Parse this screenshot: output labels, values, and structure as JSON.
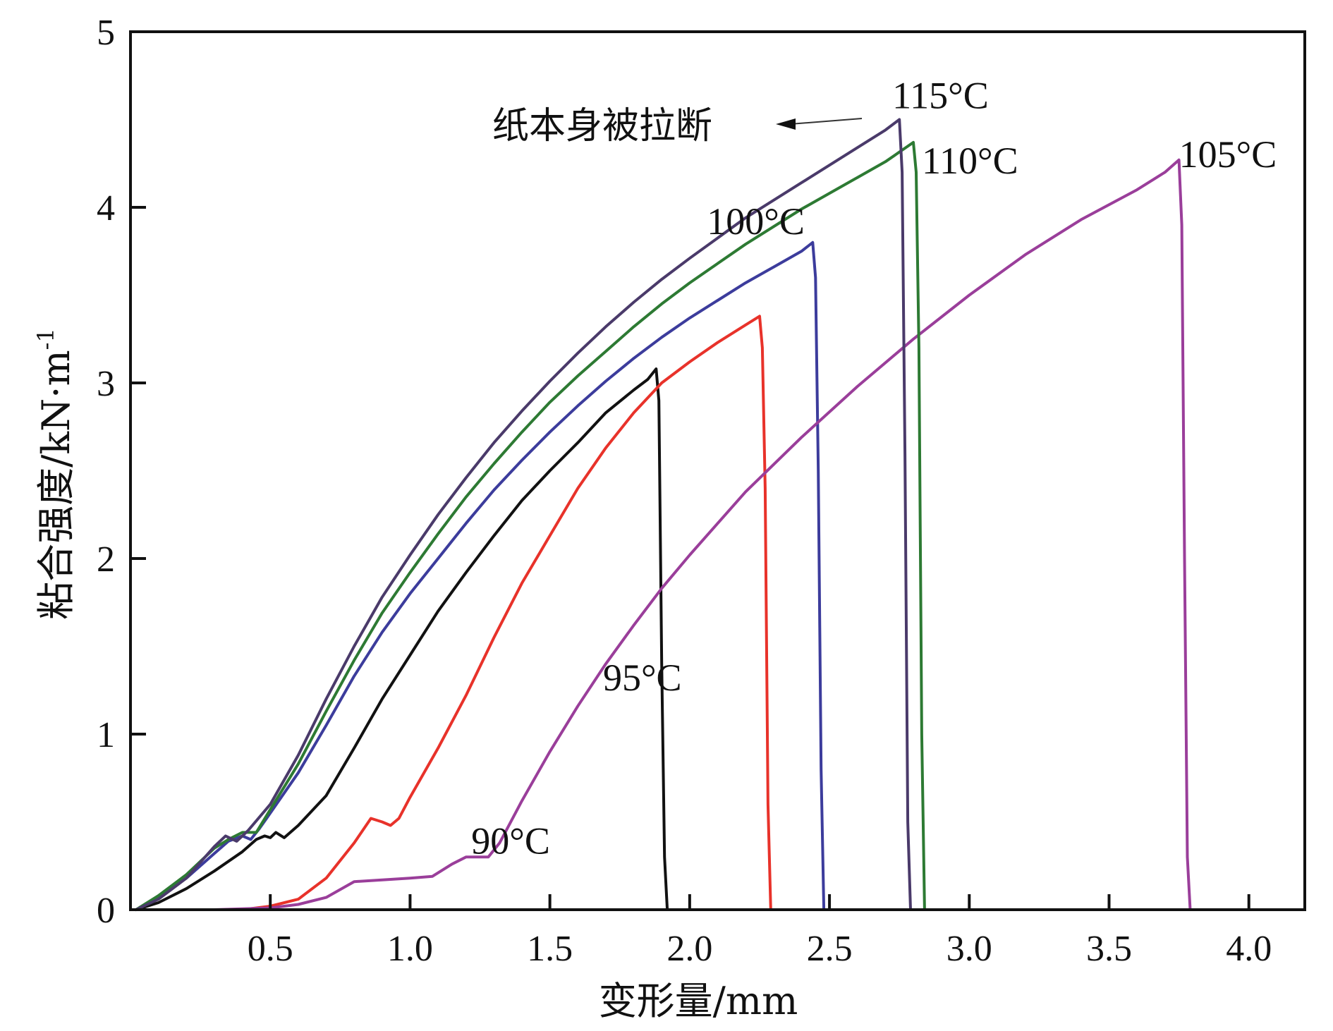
{
  "chart_data": {
    "type": "line",
    "xlabel": "变形量/mm",
    "ylabel": "粘合强度/kN·m",
    "ylabel_sup": "-1",
    "xlim": [
      0,
      4.2
    ],
    "ylim": [
      0,
      5
    ],
    "x_ticks": [
      "0.5",
      "1.0",
      "1.5",
      "2.0",
      "2.5",
      "3.0",
      "3.5",
      "4.0"
    ],
    "y_ticks": [
      "0",
      "1",
      "2",
      "3",
      "4",
      "5"
    ],
    "annotation": {
      "text": "纸本身被拉断",
      "target_series": "115°C"
    },
    "series": [
      {
        "name": "90°C",
        "color": "#111111",
        "points": [
          [
            0.02,
            0
          ],
          [
            0.1,
            0.04
          ],
          [
            0.2,
            0.12
          ],
          [
            0.3,
            0.22
          ],
          [
            0.4,
            0.33
          ],
          [
            0.45,
            0.4
          ],
          [
            0.48,
            0.42
          ],
          [
            0.5,
            0.41
          ],
          [
            0.52,
            0.44
          ],
          [
            0.55,
            0.41
          ],
          [
            0.6,
            0.48
          ],
          [
            0.7,
            0.65
          ],
          [
            0.8,
            0.92
          ],
          [
            0.9,
            1.2
          ],
          [
            1.0,
            1.45
          ],
          [
            1.1,
            1.7
          ],
          [
            1.2,
            1.92
          ],
          [
            1.3,
            2.13
          ],
          [
            1.4,
            2.33
          ],
          [
            1.5,
            2.5
          ],
          [
            1.6,
            2.66
          ],
          [
            1.7,
            2.83
          ],
          [
            1.8,
            2.96
          ],
          [
            1.85,
            3.02
          ],
          [
            1.88,
            3.08
          ],
          [
            1.89,
            2.9
          ],
          [
            1.9,
            1.4
          ],
          [
            1.91,
            0.3
          ],
          [
            1.92,
            0
          ]
        ]
      },
      {
        "name": "95°C",
        "color": "#e8322a",
        "points": [
          [
            0.4,
            0
          ],
          [
            0.5,
            0.02
          ],
          [
            0.6,
            0.06
          ],
          [
            0.7,
            0.18
          ],
          [
            0.8,
            0.38
          ],
          [
            0.86,
            0.52
          ],
          [
            0.9,
            0.5
          ],
          [
            0.93,
            0.48
          ],
          [
            0.96,
            0.52
          ],
          [
            1.0,
            0.64
          ],
          [
            1.1,
            0.92
          ],
          [
            1.2,
            1.22
          ],
          [
            1.3,
            1.55
          ],
          [
            1.4,
            1.86
          ],
          [
            1.5,
            2.13
          ],
          [
            1.6,
            2.4
          ],
          [
            1.7,
            2.63
          ],
          [
            1.8,
            2.83
          ],
          [
            1.9,
            3.0
          ],
          [
            2.0,
            3.12
          ],
          [
            2.1,
            3.23
          ],
          [
            2.2,
            3.33
          ],
          [
            2.25,
            3.38
          ],
          [
            2.26,
            3.2
          ],
          [
            2.27,
            2.4
          ],
          [
            2.28,
            0.6
          ],
          [
            2.29,
            0
          ]
        ]
      },
      {
        "name": "100°C",
        "color": "#3c3c9c",
        "points": [
          [
            0.02,
            0
          ],
          [
            0.1,
            0.07
          ],
          [
            0.2,
            0.18
          ],
          [
            0.3,
            0.32
          ],
          [
            0.35,
            0.39
          ],
          [
            0.4,
            0.42
          ],
          [
            0.43,
            0.4
          ],
          [
            0.46,
            0.46
          ],
          [
            0.5,
            0.55
          ],
          [
            0.6,
            0.78
          ],
          [
            0.7,
            1.05
          ],
          [
            0.8,
            1.33
          ],
          [
            0.9,
            1.58
          ],
          [
            1.0,
            1.8
          ],
          [
            1.1,
            2.0
          ],
          [
            1.2,
            2.2
          ],
          [
            1.3,
            2.39
          ],
          [
            1.4,
            2.56
          ],
          [
            1.5,
            2.72
          ],
          [
            1.6,
            2.87
          ],
          [
            1.7,
            3.01
          ],
          [
            1.8,
            3.14
          ],
          [
            1.9,
            3.26
          ],
          [
            2.0,
            3.37
          ],
          [
            2.1,
            3.47
          ],
          [
            2.2,
            3.57
          ],
          [
            2.3,
            3.66
          ],
          [
            2.4,
            3.75
          ],
          [
            2.44,
            3.8
          ],
          [
            2.45,
            3.6
          ],
          [
            2.46,
            2.5
          ],
          [
            2.47,
            0.8
          ],
          [
            2.48,
            0
          ]
        ]
      },
      {
        "name": "105°C",
        "color": "#9a3e9a",
        "points": [
          [
            0.3,
            0
          ],
          [
            0.5,
            0.01
          ],
          [
            0.6,
            0.03
          ],
          [
            0.7,
            0.07
          ],
          [
            0.8,
            0.16
          ],
          [
            0.9,
            0.17
          ],
          [
            1.0,
            0.18
          ],
          [
            1.08,
            0.19
          ],
          [
            1.15,
            0.26
          ],
          [
            1.2,
            0.3
          ],
          [
            1.28,
            0.3
          ],
          [
            1.32,
            0.38
          ],
          [
            1.4,
            0.62
          ],
          [
            1.5,
            0.9
          ],
          [
            1.6,
            1.16
          ],
          [
            1.7,
            1.4
          ],
          [
            1.8,
            1.62
          ],
          [
            1.9,
            1.83
          ],
          [
            2.0,
            2.02
          ],
          [
            2.2,
            2.38
          ],
          [
            2.4,
            2.69
          ],
          [
            2.6,
            2.98
          ],
          [
            2.8,
            3.25
          ],
          [
            3.0,
            3.5
          ],
          [
            3.2,
            3.73
          ],
          [
            3.4,
            3.93
          ],
          [
            3.6,
            4.1
          ],
          [
            3.7,
            4.2
          ],
          [
            3.75,
            4.27
          ],
          [
            3.76,
            3.9
          ],
          [
            3.77,
            2.0
          ],
          [
            3.78,
            0.3
          ],
          [
            3.79,
            0
          ]
        ]
      },
      {
        "name": "110°C",
        "color": "#2d7a33",
        "points": [
          [
            0.02,
            0
          ],
          [
            0.1,
            0.08
          ],
          [
            0.2,
            0.2
          ],
          [
            0.3,
            0.35
          ],
          [
            0.35,
            0.4
          ],
          [
            0.4,
            0.44
          ],
          [
            0.45,
            0.44
          ],
          [
            0.5,
            0.57
          ],
          [
            0.6,
            0.83
          ],
          [
            0.7,
            1.13
          ],
          [
            0.8,
            1.42
          ],
          [
            0.9,
            1.69
          ],
          [
            1.0,
            1.92
          ],
          [
            1.1,
            2.14
          ],
          [
            1.2,
            2.35
          ],
          [
            1.3,
            2.54
          ],
          [
            1.4,
            2.72
          ],
          [
            1.5,
            2.89
          ],
          [
            1.6,
            3.04
          ],
          [
            1.7,
            3.18
          ],
          [
            1.8,
            3.32
          ],
          [
            1.9,
            3.45
          ],
          [
            2.0,
            3.57
          ],
          [
            2.2,
            3.79
          ],
          [
            2.4,
            3.99
          ],
          [
            2.6,
            4.17
          ],
          [
            2.7,
            4.26
          ],
          [
            2.8,
            4.37
          ],
          [
            2.81,
            4.2
          ],
          [
            2.82,
            3.2
          ],
          [
            2.83,
            1.0
          ],
          [
            2.84,
            0
          ]
        ]
      },
      {
        "name": "115°C",
        "color": "#4a3a6a",
        "points": [
          [
            0.02,
            0
          ],
          [
            0.1,
            0.06
          ],
          [
            0.2,
            0.18
          ],
          [
            0.3,
            0.36
          ],
          [
            0.34,
            0.42
          ],
          [
            0.38,
            0.39
          ],
          [
            0.42,
            0.45
          ],
          [
            0.5,
            0.6
          ],
          [
            0.6,
            0.88
          ],
          [
            0.7,
            1.2
          ],
          [
            0.8,
            1.5
          ],
          [
            0.9,
            1.78
          ],
          [
            1.0,
            2.02
          ],
          [
            1.1,
            2.25
          ],
          [
            1.2,
            2.46
          ],
          [
            1.3,
            2.66
          ],
          [
            1.4,
            2.84
          ],
          [
            1.5,
            3.01
          ],
          [
            1.6,
            3.17
          ],
          [
            1.7,
            3.32
          ],
          [
            1.8,
            3.46
          ],
          [
            1.9,
            3.59
          ],
          [
            2.0,
            3.71
          ],
          [
            2.2,
            3.94
          ],
          [
            2.4,
            4.14
          ],
          [
            2.6,
            4.34
          ],
          [
            2.7,
            4.44
          ],
          [
            2.75,
            4.5
          ],
          [
            2.76,
            4.2
          ],
          [
            2.77,
            2.6
          ],
          [
            2.78,
            0.5
          ],
          [
            2.79,
            0
          ]
        ]
      }
    ]
  }
}
